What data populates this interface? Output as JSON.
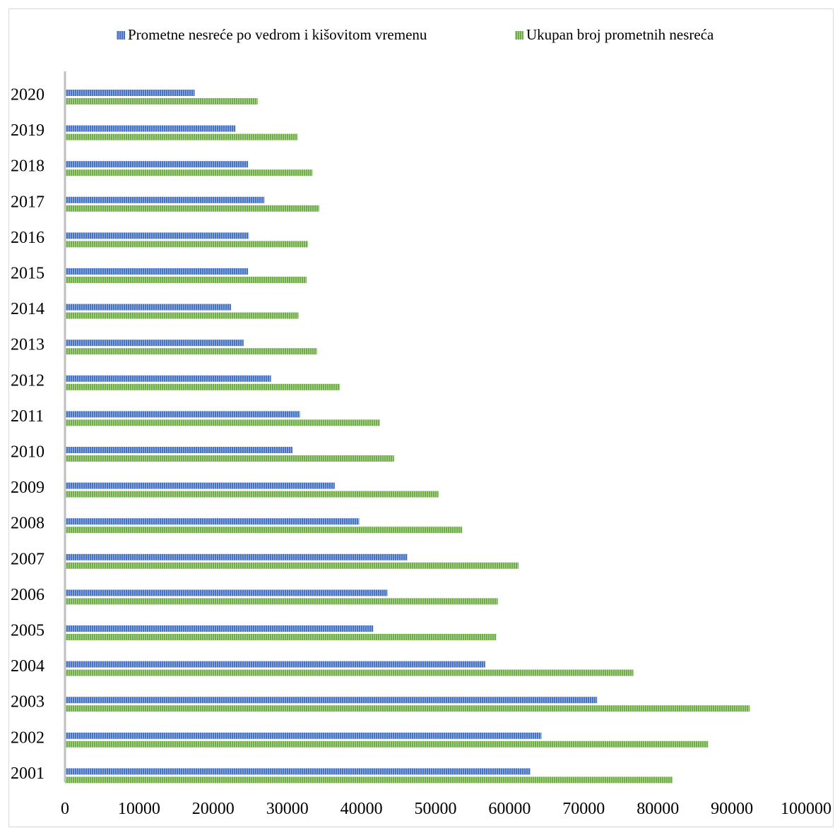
{
  "chart_data": {
    "type": "bar",
    "orientation": "horizontal",
    "title": "",
    "xlabel": "",
    "ylabel": "",
    "xlim": [
      0,
      100000
    ],
    "x_ticks": [
      "0",
      "10000",
      "20000",
      "30000",
      "40000",
      "50000",
      "60000",
      "70000",
      "80000",
      "90000",
      "100000"
    ],
    "categories": [
      "2020",
      "2019",
      "2018",
      "2017",
      "2016",
      "2015",
      "2014",
      "2013",
      "2012",
      "2011",
      "2010",
      "2009",
      "2008",
      "2007",
      "2006",
      "2005",
      "2004",
      "2003",
      "2002",
      "2001"
    ],
    "series": [
      {
        "name": "Prometne nesreće po vedrom i kišovitom vremenu",
        "color": "#4472c4",
        "values": [
          17500,
          23000,
          24700,
          26900,
          24800,
          24700,
          22400,
          24100,
          27800,
          31700,
          30700,
          36400,
          39700,
          46200,
          43500,
          41600,
          56700,
          71800,
          64300,
          62800
        ]
      },
      {
        "name": "Ukupan broj prometnih nesreća",
        "color": "#70ad47",
        "values": [
          26000,
          31400,
          33400,
          34300,
          32800,
          32600,
          31500,
          34000,
          37100,
          42500,
          44400,
          50400,
          53600,
          61200,
          58400,
          58200,
          76700,
          92400,
          86800,
          82000
        ]
      }
    ],
    "legend": {
      "position": "top"
    },
    "grid": false
  }
}
